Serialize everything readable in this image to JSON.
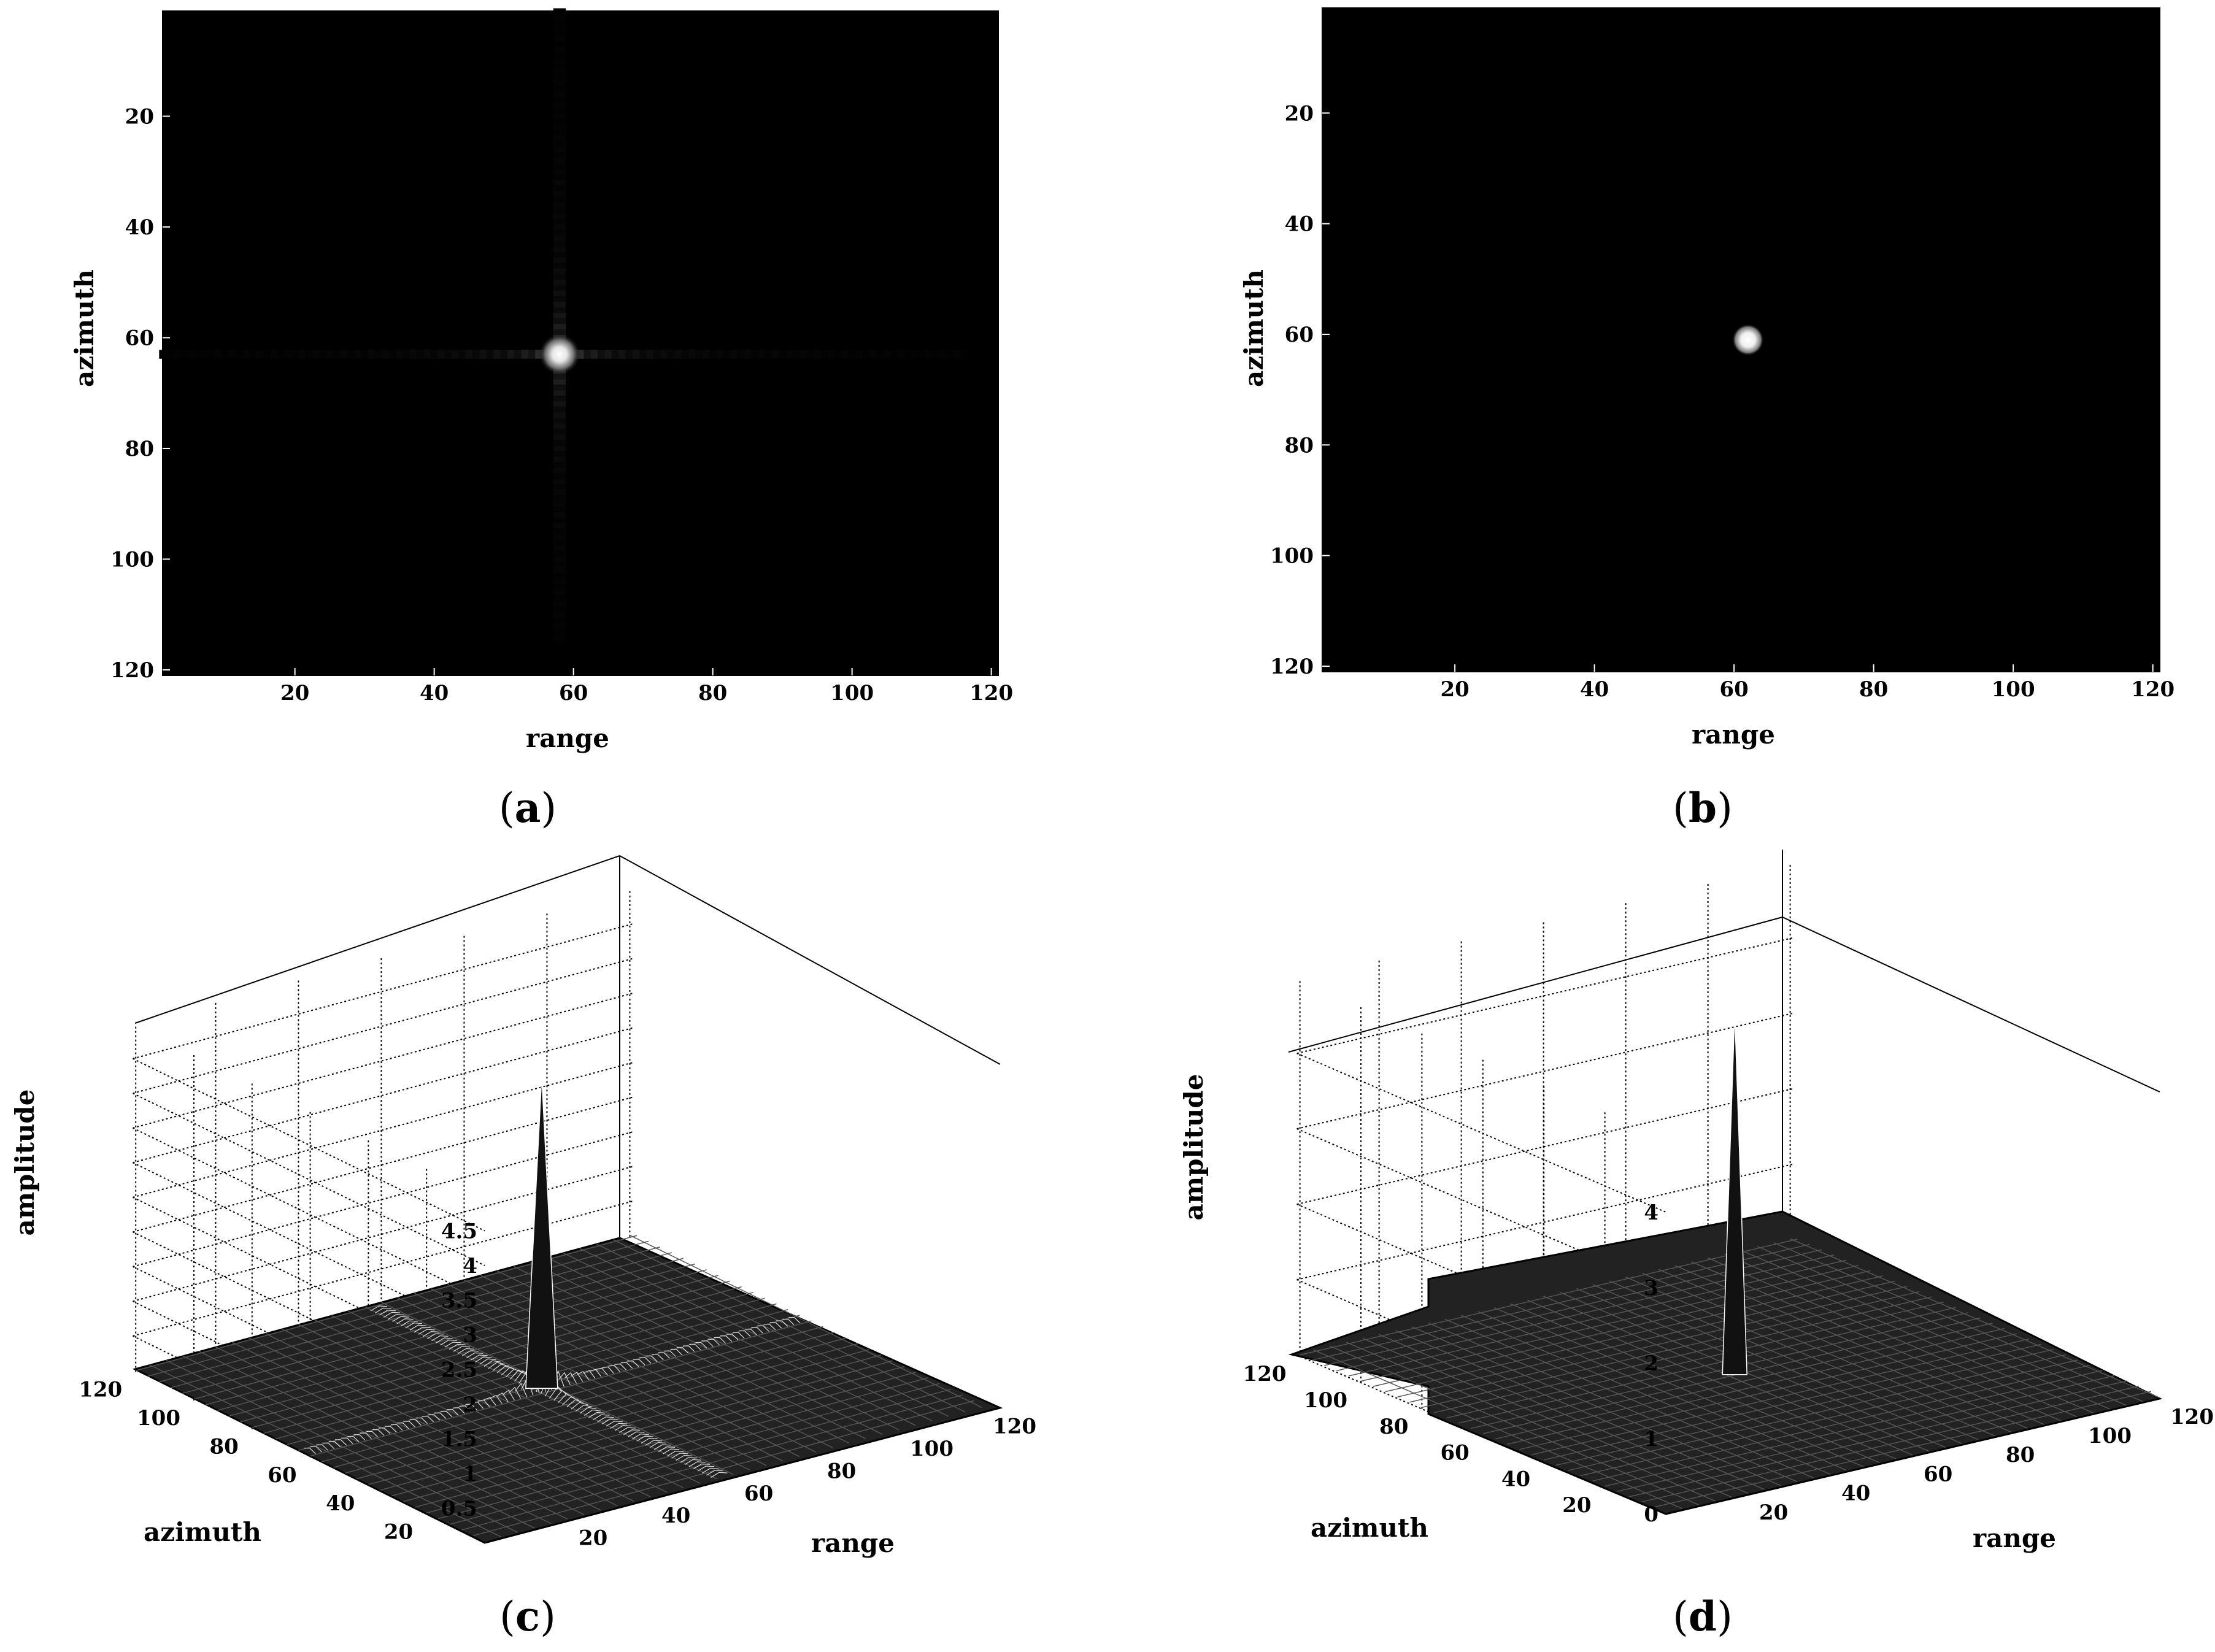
{
  "chart_data": [
    {
      "id": "a",
      "type": "heatmap",
      "caption": "a",
      "xlabel": "range",
      "ylabel": "azimuth",
      "xlim": [
        1,
        121
      ],
      "ylim": [
        1,
        121
      ],
      "x_ticks": [
        "20",
        "40",
        "60",
        "80",
        "100",
        "120"
      ],
      "y_ticks": [
        "20",
        "40",
        "60",
        "80",
        "100",
        "120"
      ],
      "colormap": "gray",
      "background": "#000000",
      "target": {
        "range": 58,
        "azimuth": 63
      },
      "sidelobes": "cross",
      "sidelobe_extent": {
        "range": [
          1,
          116
        ],
        "azimuth": [
          1,
          115
        ]
      }
    },
    {
      "id": "b",
      "type": "heatmap",
      "caption": "b",
      "xlabel": "range",
      "ylabel": "azimuth",
      "xlim": [
        1,
        121
      ],
      "ylim": [
        1,
        121
      ],
      "x_ticks": [
        "20",
        "40",
        "60",
        "80",
        "100",
        "120"
      ],
      "y_ticks": [
        "20",
        "40",
        "60",
        "80",
        "100",
        "120"
      ],
      "colormap": "gray",
      "background": "#000000",
      "target": {
        "range": 62,
        "azimuth": 61
      },
      "sidelobes": "none"
    },
    {
      "id": "c",
      "type": "surface",
      "caption": "c",
      "xlabel": "range",
      "ylabel": "azimuth",
      "zlabel": "amplitude",
      "x_ticks": [
        "20",
        "40",
        "60",
        "80",
        "100",
        "120"
      ],
      "y_ticks": [
        "20",
        "40",
        "60",
        "80",
        "100",
        "120"
      ],
      "z_ticks": [
        "0.5",
        "1",
        "1.5",
        "2",
        "2.5",
        "3",
        "3.5",
        "4",
        "4.5"
      ],
      "zlim": [
        0,
        5
      ],
      "peak": {
        "range": 58,
        "azimuth": 63,
        "amplitude": 4.5
      },
      "sidelobes": "cross"
    },
    {
      "id": "d",
      "type": "surface",
      "caption": "d",
      "xlabel": "range",
      "ylabel": "azimuth",
      "zlabel": "amplitude",
      "x_ticks": [
        "20",
        "40",
        "60",
        "80",
        "100",
        "120"
      ],
      "y_ticks": [
        "20",
        "40",
        "60",
        "80",
        "100",
        "120"
      ],
      "z_ticks": [
        "0",
        "1",
        "2",
        "3",
        "4"
      ],
      "zlim": [
        0,
        5
      ],
      "peak": {
        "range": 62,
        "azimuth": 61,
        "amplitude": 4.8
      },
      "sidelobes": "none"
    }
  ]
}
